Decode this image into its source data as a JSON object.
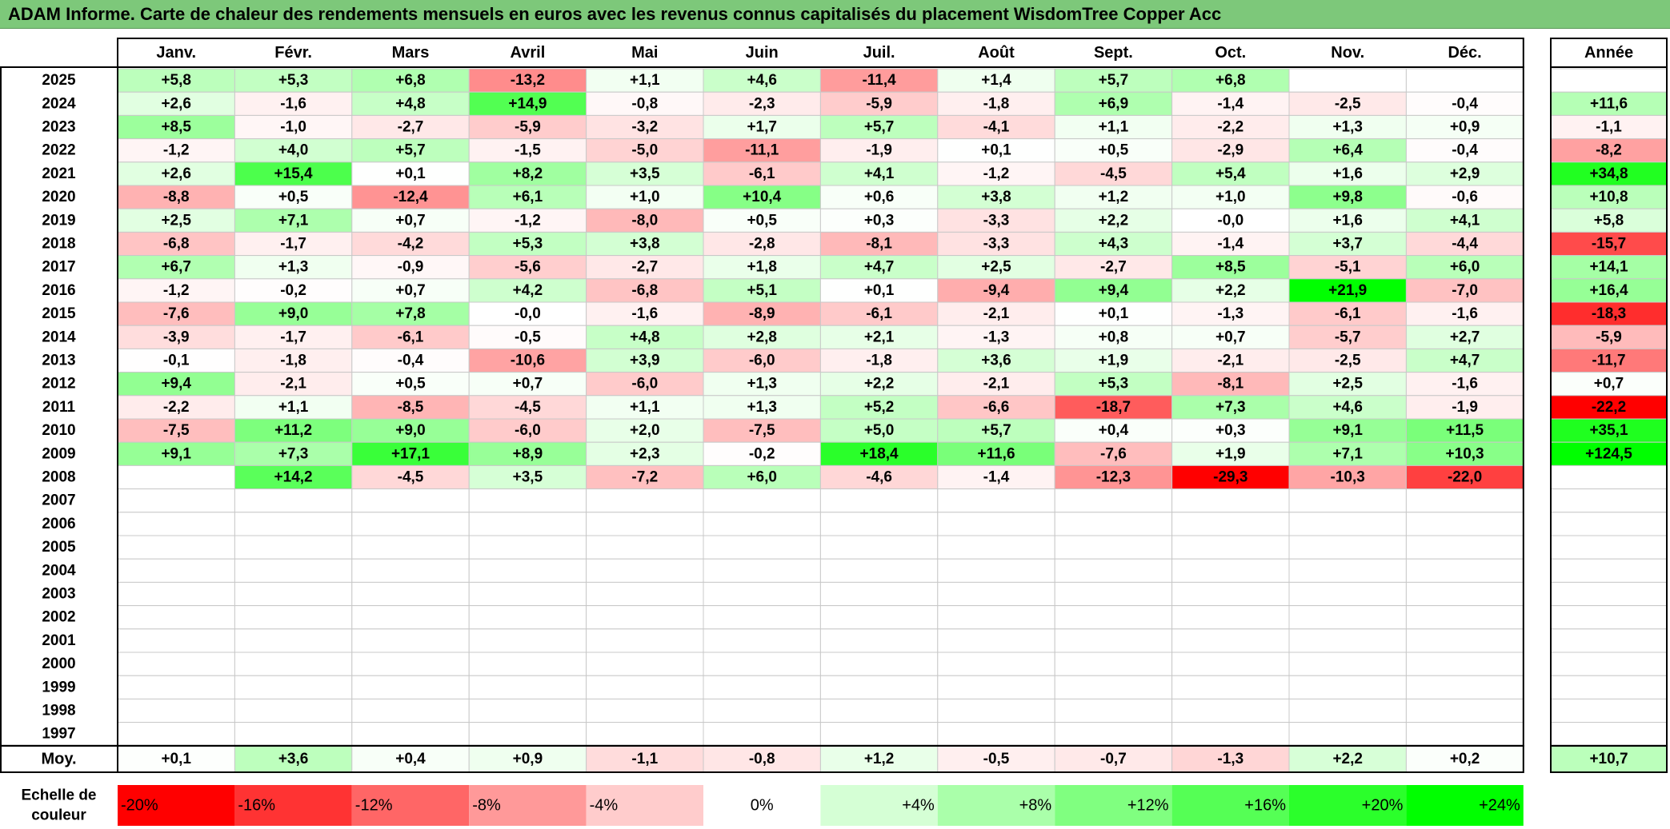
{
  "title": "ADAM Informe. Carte de chaleur des rendements mensuels en euros avec les revenus connus capitalisés du placement WisdomTree Copper Acc",
  "colors": {
    "title_bg": "#7dc87a",
    "strong_red": "#ff0000",
    "strong_green": "#00ff00",
    "neutral": "#ffffff"
  },
  "chart_data": {
    "type": "heatmap",
    "months": [
      "Janv.",
      "Févr.",
      "Mars",
      "Avril",
      "Mai",
      "Juin",
      "Juil.",
      "Août",
      "Sept.",
      "Oct.",
      "Nov.",
      "Déc."
    ],
    "year_header": "Année",
    "avg_label": "Moy.",
    "rows": [
      {
        "year": "2025",
        "values": [
          "+5,8",
          "+5,3",
          "+6,8",
          "-13,2",
          "+1,1",
          "+4,6",
          "-11,4",
          "+1,4",
          "+5,7",
          "+6,8",
          "",
          ""
        ],
        "annual": ""
      },
      {
        "year": "2024",
        "values": [
          "+2,6",
          "-1,6",
          "+4,8",
          "+14,9",
          "-0,8",
          "-2,3",
          "-5,9",
          "-1,8",
          "+6,9",
          "-1,4",
          "-2,5",
          "-0,4"
        ],
        "annual": "+11,6"
      },
      {
        "year": "2023",
        "values": [
          "+8,5",
          "-1,0",
          "-2,7",
          "-5,9",
          "-3,2",
          "+1,7",
          "+5,7",
          "-4,1",
          "+1,1",
          "-2,2",
          "+1,3",
          "+0,9"
        ],
        "annual": "-1,1"
      },
      {
        "year": "2022",
        "values": [
          "-1,2",
          "+4,0",
          "+5,7",
          "-1,5",
          "-5,0",
          "-11,1",
          "-1,9",
          "+0,1",
          "+0,5",
          "-2,9",
          "+6,4",
          "-0,4"
        ],
        "annual": "-8,2"
      },
      {
        "year": "2021",
        "values": [
          "+2,6",
          "+15,4",
          "+0,1",
          "+8,2",
          "+3,5",
          "-6,1",
          "+4,1",
          "-1,2",
          "-4,5",
          "+5,4",
          "+1,6",
          "+2,9"
        ],
        "annual": "+34,8"
      },
      {
        "year": "2020",
        "values": [
          "-8,8",
          "+0,5",
          "-12,4",
          "+6,1",
          "+1,0",
          "+10,4",
          "+0,6",
          "+3,8",
          "+1,2",
          "+1,0",
          "+9,8",
          "-0,6"
        ],
        "annual": "+10,8"
      },
      {
        "year": "2019",
        "values": [
          "+2,5",
          "+7,1",
          "+0,7",
          "-1,2",
          "-8,0",
          "+0,5",
          "+0,3",
          "-3,3",
          "+2,2",
          "-0,0",
          "+1,6",
          "+4,1"
        ],
        "annual": "+5,8"
      },
      {
        "year": "2018",
        "values": [
          "-6,8",
          "-1,7",
          "-4,2",
          "+5,3",
          "+3,8",
          "-2,8",
          "-8,1",
          "-3,3",
          "+4,3",
          "-1,4",
          "+3,7",
          "-4,4"
        ],
        "annual": "-15,7"
      },
      {
        "year": "2017",
        "values": [
          "+6,7",
          "+1,3",
          "-0,9",
          "-5,6",
          "-2,7",
          "+1,8",
          "+4,7",
          "+2,5",
          "-2,7",
          "+8,5",
          "-5,1",
          "+6,0"
        ],
        "annual": "+14,1"
      },
      {
        "year": "2016",
        "values": [
          "-1,2",
          "-0,2",
          "+0,7",
          "+4,2",
          "-6,8",
          "+5,1",
          "+0,1",
          "-9,4",
          "+9,4",
          "+2,2",
          "+21,9",
          "-7,0"
        ],
        "annual": "+16,4"
      },
      {
        "year": "2015",
        "values": [
          "-7,6",
          "+9,0",
          "+7,8",
          "-0,0",
          "-1,6",
          "-8,9",
          "-6,1",
          "-2,1",
          "+0,1",
          "-1,3",
          "-6,1",
          "-1,6"
        ],
        "annual": "-18,3"
      },
      {
        "year": "2014",
        "values": [
          "-3,9",
          "-1,7",
          "-6,1",
          "-0,5",
          "+4,8",
          "+2,8",
          "+2,1",
          "-1,3",
          "+0,8",
          "+0,7",
          "-5,7",
          "+2,7"
        ],
        "annual": "-5,9"
      },
      {
        "year": "2013",
        "values": [
          "-0,1",
          "-1,8",
          "-0,4",
          "-10,6",
          "+3,9",
          "-6,0",
          "-1,8",
          "+3,6",
          "+1,9",
          "-2,1",
          "-2,5",
          "+4,7"
        ],
        "annual": "-11,7"
      },
      {
        "year": "2012",
        "values": [
          "+9,4",
          "-2,1",
          "+0,5",
          "+0,7",
          "-6,0",
          "+1,3",
          "+2,2",
          "-2,1",
          "+5,3",
          "-8,1",
          "+2,5",
          "-1,6"
        ],
        "annual": "+0,7"
      },
      {
        "year": "2011",
        "values": [
          "-2,2",
          "+1,1",
          "-8,5",
          "-4,5",
          "+1,1",
          "+1,3",
          "+5,2",
          "-6,6",
          "-18,7",
          "+7,3",
          "+4,6",
          "-1,9"
        ],
        "annual": "-22,2"
      },
      {
        "year": "2010",
        "values": [
          "-7,5",
          "+11,2",
          "+9,0",
          "-6,0",
          "+2,0",
          "-7,5",
          "+5,0",
          "+5,7",
          "+0,4",
          "+0,3",
          "+9,1",
          "+11,5"
        ],
        "annual": "+35,1"
      },
      {
        "year": "2009",
        "values": [
          "+9,1",
          "+7,3",
          "+17,1",
          "+8,9",
          "+2,3",
          "-0,2",
          "+18,4",
          "+11,6",
          "-7,6",
          "+1,9",
          "+7,1",
          "+10,3"
        ],
        "annual": "+124,5"
      },
      {
        "year": "2008",
        "values": [
          "",
          "+14,2",
          "-4,5",
          "+3,5",
          "-7,2",
          "+6,0",
          "-4,6",
          "-1,4",
          "-12,3",
          "-29,3",
          "-10,3",
          "-22,0"
        ],
        "annual": ""
      },
      {
        "year": "2007",
        "values": [
          "",
          "",
          "",
          "",
          "",
          "",
          "",
          "",
          "",
          "",
          "",
          ""
        ],
        "annual": ""
      },
      {
        "year": "2006",
        "values": [
          "",
          "",
          "",
          "",
          "",
          "",
          "",
          "",
          "",
          "",
          "",
          ""
        ],
        "annual": ""
      },
      {
        "year": "2005",
        "values": [
          "",
          "",
          "",
          "",
          "",
          "",
          "",
          "",
          "",
          "",
          "",
          ""
        ],
        "annual": ""
      },
      {
        "year": "2004",
        "values": [
          "",
          "",
          "",
          "",
          "",
          "",
          "",
          "",
          "",
          "",
          "",
          ""
        ],
        "annual": ""
      },
      {
        "year": "2003",
        "values": [
          "",
          "",
          "",
          "",
          "",
          "",
          "",
          "",
          "",
          "",
          "",
          ""
        ],
        "annual": ""
      },
      {
        "year": "2002",
        "values": [
          "",
          "",
          "",
          "",
          "",
          "",
          "",
          "",
          "",
          "",
          "",
          ""
        ],
        "annual": ""
      },
      {
        "year": "2001",
        "values": [
          "",
          "",
          "",
          "",
          "",
          "",
          "",
          "",
          "",
          "",
          "",
          ""
        ],
        "annual": ""
      },
      {
        "year": "2000",
        "values": [
          "",
          "",
          "",
          "",
          "",
          "",
          "",
          "",
          "",
          "",
          "",
          ""
        ],
        "annual": ""
      },
      {
        "year": "1999",
        "values": [
          "",
          "",
          "",
          "",
          "",
          "",
          "",
          "",
          "",
          "",
          "",
          ""
        ],
        "annual": ""
      },
      {
        "year": "1998",
        "values": [
          "",
          "",
          "",
          "",
          "",
          "",
          "",
          "",
          "",
          "",
          "",
          ""
        ],
        "annual": ""
      },
      {
        "year": "1997",
        "values": [
          "",
          "",
          "",
          "",
          "",
          "",
          "",
          "",
          "",
          "",
          "",
          ""
        ],
        "annual": ""
      }
    ],
    "averages": [
      "+0,1",
      "+3,6",
      "+0,4",
      "+0,9",
      "-1,1",
      "-0,8",
      "+1,2",
      "-0,5",
      "-0,7",
      "-1,3",
      "+2,2",
      "+0,2"
    ],
    "annual_average": "+10,7",
    "scale": {
      "label_line1": "Echelle de",
      "label_line2": "couleur",
      "stops": [
        "-20%",
        "-16%",
        "-12%",
        "-8%",
        "-4%",
        "0%",
        "+4%",
        "+8%",
        "+12%",
        "+16%",
        "+20%",
        "+24%"
      ]
    }
  }
}
